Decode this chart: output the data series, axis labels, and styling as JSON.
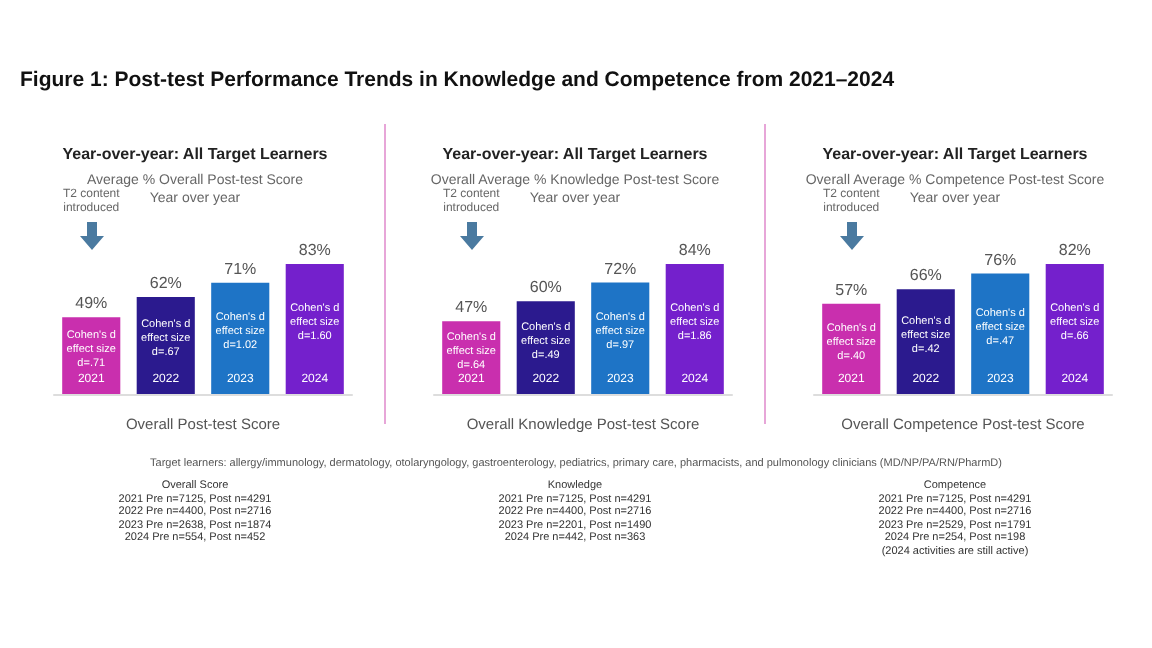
{
  "chart_data": [
    {
      "type": "bar",
      "title": "Year-over-year: All Target Learners",
      "subtitle": "Average % Overall Post-test Score\nYear over year",
      "xlabel": "Overall Post-test Score",
      "categories": [
        "2021",
        "2022",
        "2023",
        "2024"
      ],
      "values": [
        49,
        62,
        71,
        83
      ],
      "value_labels": [
        "49%",
        "62%",
        "71%",
        "83%"
      ],
      "colors": [
        "#c92fae",
        "#2b1a8e",
        "#1e74c6",
        "#7420cc"
      ],
      "annotations": [
        "Figure 1: Post-test Performance Trends in Knowledge and Competence from 2021–2024",
        "Target  learners: allergy/immunology, dermatology, otolaryngology, gastroenterology, pediatrics, primary care, pharmacists, and pulmonology clinicians (MD/NP/PA/RN/PharmD)",
        "T2 content\nintroduced",
        "Cohen's d\neffect size\nd=.71",
        "Cohen's d\neffect size\nd=.67",
        "Cohen's d\neffect size\nd=1.02",
        "Cohen's d\neffect size\nd=1.60",
        "Overall Score\n2021 Pre n=7125, Post n=4291\n2022 Pre n=4400, Post n=2716\n2023 Pre n=2638, Post n=1874\n2024 Pre n=554, Post n=452"
      ]
    },
    {
      "type": "bar",
      "title": "Year-over-year: All Target Learners",
      "subtitle": "Overall Average % Knowledge Post-test Score\nYear over year",
      "xlabel": "Overall Knowledge Post-test Score",
      "categories": [
        "2021",
        "2022",
        "2023",
        "2024"
      ],
      "values": [
        47,
        60,
        72,
        84
      ],
      "value_labels": [
        "47%",
        "60%",
        "72%",
        "84%"
      ],
      "colors": [
        "#c92fae",
        "#2b1a8e",
        "#1e74c6",
        "#7420cc"
      ],
      "annotations": [
        "T2 content\nintroduced",
        "Cohen's d\neffect size\nd=.64",
        "Cohen's d\neffect size\nd=.49",
        "Cohen's d\neffect size\nd=.97",
        "Cohen's d\neffect size\nd=1.86",
        "Knowledge\n2021 Pre n=7125, Post n=4291\n2022 Pre n=4400, Post n=2716\n2023 Pre n=2201, Post n=1490\n2024 Pre n=442, Post n=363"
      ]
    },
    {
      "type": "bar",
      "title": "Year-over-year: All Target Learners",
      "subtitle": "Overall Average % Competence Post-test Score\nYear over year",
      "xlabel": "Overall Competence Post-test Score",
      "categories": [
        "2021",
        "2022",
        "2023",
        "2024"
      ],
      "values": [
        57,
        66,
        76,
        82
      ],
      "value_labels": [
        "57%",
        "66%",
        "76%",
        "82%"
      ],
      "colors": [
        "#c92fae",
        "#2b1a8e",
        "#1e74c6",
        "#7420cc"
      ],
      "annotations": [
        "T2 content\nintroduced",
        "Cohen's d\neffect size\nd=.40",
        "Cohen's d\neffect size\nd=.42",
        "Cohen's d\neffect size\nd=.47",
        "Cohen's d\neffect size\nd=.66",
        "Competence\n2021 Pre n=7125, Post n=4291\n2022 Pre n=4400, Post n=2716\n2023 Pre n=2529, Post n=1791\n2024 Pre n=254, Post n=198\n(2024 activities are still active)"
      ]
    }
  ]
}
